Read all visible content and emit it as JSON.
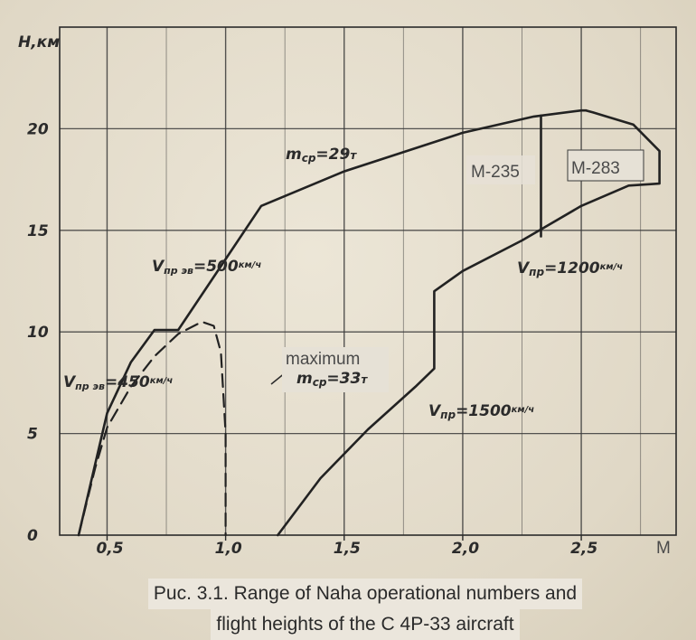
{
  "chart_data": {
    "type": "line",
    "ylabel": "H,км",
    "xlabel": "M",
    "xlim": [
      0.3,
      2.9
    ],
    "ylim": [
      0,
      22
    ],
    "xticks": [
      0.5,
      1.0,
      1.5,
      2.0,
      2.5
    ],
    "xtick_labels": [
      "0,5",
      "1,0",
      "1,5",
      "2,0",
      "2,5"
    ],
    "yticks": [
      0,
      5,
      10,
      15,
      20
    ],
    "yticklabels": [
      "0",
      "5",
      "10",
      "15",
      "20"
    ],
    "grid": true,
    "series": [
      {
        "style": "solid",
        "x": [
          0.38,
          0.45,
          0.5,
          0.6,
          0.7,
          0.8,
          1.15,
          1.5,
          2.0,
          2.3,
          2.5,
          2.52
        ],
        "y": [
          0,
          3.5,
          6,
          8.5,
          10.1,
          10.1,
          16.2,
          17.9,
          19.8,
          20.6,
          20.9,
          20.9
        ]
      },
      {
        "style": "dashed",
        "x": [
          0.38,
          0.45,
          0.5,
          0.6,
          0.7,
          0.8,
          0.9,
          0.95,
          0.98,
          1.0,
          1.0
        ],
        "y": [
          0,
          3.3,
          5.3,
          7.3,
          8.8,
          9.9,
          10.5,
          10.3,
          9.0,
          5.0,
          0
        ]
      },
      {
        "style": "solid",
        "x": [
          1.22,
          1.4,
          1.6,
          1.8,
          1.88,
          1.88,
          2.0,
          2.25,
          2.5,
          2.7,
          2.83,
          2.83,
          2.72,
          2.55,
          2.52
        ],
        "y": [
          0,
          2.8,
          5.2,
          7.3,
          8.2,
          12.0,
          13.0,
          14.5,
          16.2,
          17.2,
          17.3,
          18.9,
          20.2,
          20.8,
          20.9
        ]
      },
      {
        "style": "solid",
        "x": [
          2.33,
          2.33
        ],
        "y": [
          14.7,
          20.65
        ]
      }
    ],
    "annotations": [
      {
        "text": "m",
        "sub": "ср",
        "value": "=29",
        "unit": "т"
      },
      {
        "text": "V",
        "sub": "пр эв",
        "value": "=500",
        "unit": "км/ч"
      },
      {
        "text": "V",
        "sub": "пр эв",
        "value": "=450",
        "unit": "км/ч"
      },
      {
        "text": "V",
        "sub": "пр",
        "value": "=1200",
        "unit": "км/ч"
      },
      {
        "text": "V",
        "sub": "пр",
        "value": "=1500",
        "unit": "км/ч"
      },
      {
        "text": "m",
        "sub": "ср",
        "value": "=33",
        "unit": "т"
      }
    ],
    "overlay_labels": [
      "M-235",
      "M-283",
      "maximum"
    ]
  },
  "caption": [
    "Puc. 3.1. Range of Naha operational numbers and",
    "flight heights of the C 4P-33 aircraft"
  ]
}
